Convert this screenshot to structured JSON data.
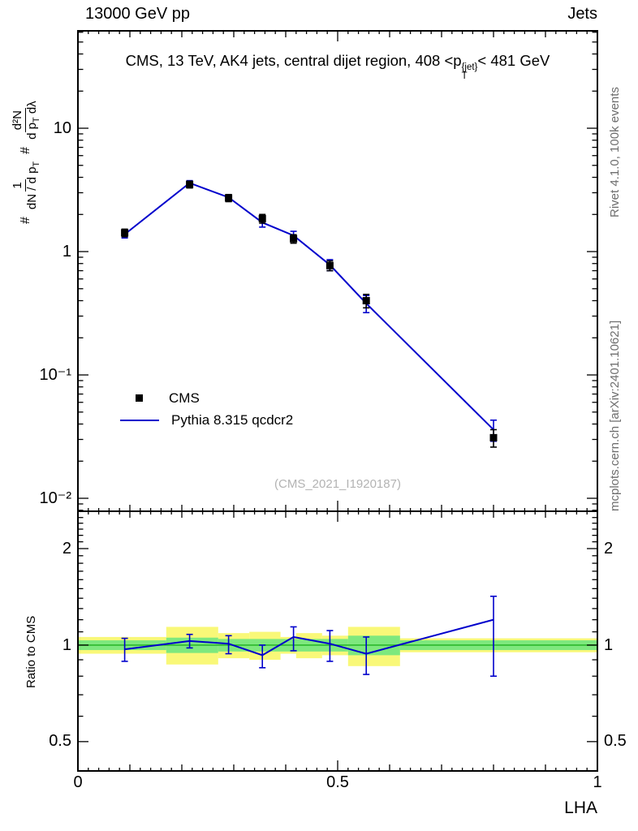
{
  "header": {
    "left": "13000 GeV pp",
    "right": "Jets"
  },
  "title": {
    "prefix": "CMS, 13 TeV, AK4 jets, central dijet region, 408 <p",
    "sup": "{jet}",
    "sub": "T",
    "suffix": "< 481 GeV"
  },
  "ylabel": {
    "hash1": "#",
    "frac1_num": "1",
    "frac1_den_a": "dN / d p",
    "frac1_den_sub": "T",
    "hash2": "#",
    "frac2_num": "d²N",
    "frac2_den_a": "d p",
    "frac2_den_sub": "T",
    "frac2_den_b": " dλ"
  },
  "right_labels": {
    "top": "Rivet 4.1.0,  100k events",
    "bottom": "mcplots.cern.ch [arXiv:2401.10621]"
  },
  "watermark": "(CMS_2021_I1920187)",
  "legend": [
    {
      "label": "CMS",
      "marker": "black-square"
    },
    {
      "label": "Pythia 8.315 qcdcr2",
      "marker": "blue-line"
    }
  ],
  "ratio_ylabel": "Ratio to CMS",
  "xlabel": "LHA",
  "ticks": {
    "main_y": [
      {
        "label": "10"
      },
      {
        "label": "1"
      },
      {
        "label": "10⁻¹"
      },
      {
        "label": "10⁻²"
      }
    ],
    "ratio_y": [
      {
        "label": "2"
      },
      {
        "label": "1"
      },
      {
        "label": "0.5"
      }
    ],
    "x": [
      {
        "label": "0"
      },
      {
        "label": "0.5"
      },
      {
        "label": "1"
      }
    ]
  },
  "chart_data": {
    "type": "line",
    "title": "CMS, 13 TeV, AK4 jets, central dijet region, 408 < pT^{jet} < 481 GeV",
    "xlabel": "LHA",
    "ylabel": "# 1/(dN/dpT) · # d²N/(dpT dλ)",
    "xlim": [
      0,
      1
    ],
    "main_yscale": "log",
    "main_ylim": [
      0.00785,
      61.6
    ],
    "main_yticks": [
      0.01,
      0.1,
      1,
      10
    ],
    "x": [
      0.09,
      0.215,
      0.29,
      0.355,
      0.415,
      0.485,
      0.555,
      0.8
    ],
    "series": [
      {
        "name": "CMS",
        "type": "points",
        "marker": "square",
        "y": [
          1.42,
          3.5,
          2.72,
          1.85,
          1.27,
          0.77,
          0.4,
          0.031
        ],
        "yerr": [
          0.1,
          0.22,
          0.18,
          0.15,
          0.1,
          0.07,
          0.05,
          0.005
        ]
      },
      {
        "name": "Pythia 8.315 qcdcr2",
        "type": "line",
        "y": [
          1.38,
          3.6,
          2.75,
          1.72,
          1.35,
          0.78,
          0.38,
          0.036
        ],
        "yerr": [
          0.09,
          0.16,
          0.13,
          0.14,
          0.11,
          0.08,
          0.06,
          0.007
        ]
      }
    ],
    "ratio": {
      "label": "Ratio to CMS",
      "yscale": "log",
      "ylim": [
        0.405,
        2.615
      ],
      "yticks": [
        0.5,
        1,
        2
      ],
      "y": [
        0.97,
        1.03,
        1.01,
        0.93,
        1.06,
        1.01,
        0.94,
        1.2
      ],
      "yerr_up": [
        0.08,
        0.05,
        0.06,
        0.07,
        0.08,
        0.1,
        0.12,
        0.22
      ],
      "yerr_dn": [
        0.08,
        0.05,
        0.07,
        0.08,
        0.1,
        0.12,
        0.13,
        0.4
      ],
      "bands": {
        "yellow": [
          {
            "x0": 0.0,
            "x1": 0.17,
            "lo": 0.94,
            "hi": 1.06
          },
          {
            "x0": 0.17,
            "x1": 0.27,
            "lo": 0.87,
            "hi": 1.14
          },
          {
            "x0": 0.27,
            "x1": 0.33,
            "lo": 0.91,
            "hi": 1.09
          },
          {
            "x0": 0.33,
            "x1": 0.39,
            "lo": 0.9,
            "hi": 1.1
          },
          {
            "x0": 0.39,
            "x1": 0.42,
            "lo": 0.94,
            "hi": 1.06
          },
          {
            "x0": 0.42,
            "x1": 0.47,
            "lo": 0.91,
            "hi": 1.09
          },
          {
            "x0": 0.47,
            "x1": 0.52,
            "lo": 0.93,
            "hi": 1.07
          },
          {
            "x0": 0.52,
            "x1": 0.62,
            "lo": 0.86,
            "hi": 1.14
          },
          {
            "x0": 0.62,
            "x1": 1.0,
            "lo": 0.95,
            "hi": 1.05
          }
        ],
        "green": [
          {
            "x0": 0.0,
            "x1": 0.17,
            "lo": 0.965,
            "hi": 1.035
          },
          {
            "x0": 0.17,
            "x1": 0.27,
            "lo": 0.945,
            "hi": 1.055
          },
          {
            "x0": 0.27,
            "x1": 0.52,
            "lo": 0.955,
            "hi": 1.045
          },
          {
            "x0": 0.52,
            "x1": 0.62,
            "lo": 0.93,
            "hi": 1.07
          },
          {
            "x0": 0.62,
            "x1": 1.0,
            "lo": 0.965,
            "hi": 1.035
          }
        ]
      }
    },
    "colors": {
      "cms": "#000000",
      "pythia": "#0000cc",
      "yellow_band": "#f9f878",
      "green_band": "#7ee87e",
      "green_line": "#2db82d"
    }
  }
}
